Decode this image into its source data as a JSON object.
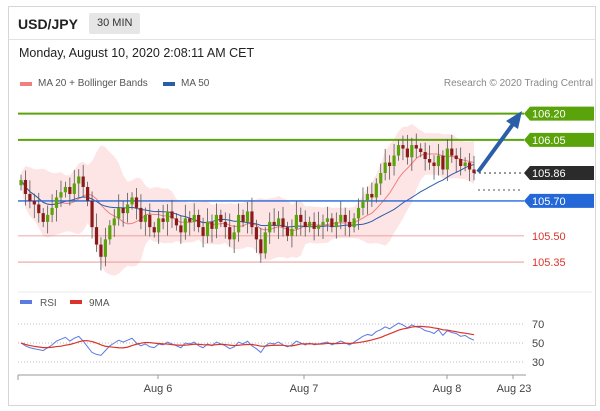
{
  "header": {
    "symbol": "USD/JPY",
    "timeframe": "30 MIN",
    "datetime": "Monday, August 10, 2020 2:08:11 AM CET"
  },
  "legend": {
    "items": [
      {
        "label": "MA 20 + Bollinger Bands",
        "color": "#f08080"
      },
      {
        "label": "MA 50",
        "color": "#2a5ea8"
      }
    ],
    "credit": "Research © 2020 Trading Central"
  },
  "colors": {
    "resistance": "#5aa30a",
    "pivot": "#2468d8",
    "support": "#d9342b",
    "current": "#2b2b2b",
    "candle_up": "#5aa30a",
    "candle_down": "#8b1a1a",
    "bollinger_fill": "#fde0e0",
    "ma20": "#f08080",
    "ma50": "#2a5ea8",
    "rsi": "#5b7be0",
    "rsi_ma": "#d9342b",
    "arrow": "#2a5ea8"
  },
  "levels": [
    {
      "price": "106.20",
      "type": "resistance"
    },
    {
      "price": "106.05",
      "type": "resistance"
    },
    {
      "price": "105.86",
      "type": "current"
    },
    {
      "price": "105.70",
      "type": "pivot"
    },
    {
      "price": "105.50",
      "type": "support"
    },
    {
      "price": "105.35",
      "type": "support"
    }
  ],
  "rsi_panel": {
    "legend": [
      {
        "label": "RSI",
        "color": "#5b7be0"
      },
      {
        "label": "9MA",
        "color": "#d9342b"
      }
    ],
    "ticks": [
      "70",
      "50",
      "30"
    ]
  },
  "x_axis": {
    "ticks": [
      "Aug 6",
      "Aug 7",
      "Aug 8",
      "Aug 23"
    ]
  },
  "chart_data": {
    "type": "candlestick",
    "instrument": "USD/JPY",
    "timeframe": "30 MIN",
    "price_levels": [
      106.2,
      106.05,
      105.86,
      105.7,
      105.5,
      105.35
    ],
    "close_series": [
      105.82,
      105.74,
      105.7,
      105.68,
      105.63,
      105.58,
      105.62,
      105.66,
      105.72,
      105.75,
      105.78,
      105.74,
      105.8,
      105.84,
      105.78,
      105.7,
      105.55,
      105.45,
      105.38,
      105.48,
      105.56,
      105.6,
      105.66,
      105.63,
      105.68,
      105.72,
      105.66,
      105.58,
      105.62,
      105.55,
      105.52,
      105.6,
      105.58,
      105.64,
      105.6,
      105.56,
      105.52,
      105.6,
      105.58,
      105.62,
      105.55,
      105.5,
      105.58,
      105.54,
      105.62,
      105.58,
      105.55,
      105.48,
      105.52,
      105.62,
      105.58,
      105.64,
      105.55,
      105.48,
      105.4,
      105.52,
      105.58,
      105.56,
      105.6,
      105.55,
      105.5,
      105.54,
      105.62,
      105.58,
      105.55,
      105.58,
      105.54,
      105.56,
      105.58,
      105.6,
      105.55,
      105.58,
      105.62,
      105.58,
      105.55,
      105.6,
      105.66,
      105.7,
      105.74,
      105.72,
      105.8,
      105.86,
      105.92,
      105.9,
      105.96,
      106.02,
      106.0,
      105.95,
      106.02,
      106.0,
      105.98,
      105.94,
      105.92,
      105.9,
      105.96,
      105.88,
      106.0,
      105.96,
      105.94,
      105.9,
      105.92,
      105.88,
      105.86
    ],
    "rsi_values": [
      50,
      47,
      45,
      44,
      43,
      42,
      45,
      48,
      52,
      54,
      56,
      52,
      55,
      57,
      52,
      46,
      40,
      38,
      37,
      42,
      47,
      50,
      53,
      51,
      53,
      55,
      50,
      47,
      49,
      46,
      45,
      49,
      48,
      51,
      49,
      47,
      45,
      50,
      49,
      51,
      47,
      45,
      49,
      47,
      51,
      49,
      47,
      44,
      46,
      51,
      49,
      52,
      47,
      44,
      40,
      47,
      50,
      49,
      51,
      48,
      46,
      48,
      52,
      50,
      48,
      50,
      48,
      49,
      50,
      51,
      48,
      50,
      52,
      50,
      48,
      51,
      54,
      57,
      59,
      58,
      62,
      64,
      67,
      65,
      68,
      71,
      69,
      66,
      69,
      67,
      66,
      63,
      62,
      60,
      64,
      58,
      63,
      61,
      60,
      57,
      58,
      55,
      53
    ],
    "rsi_ticks": [
      70,
      50,
      30
    ]
  }
}
